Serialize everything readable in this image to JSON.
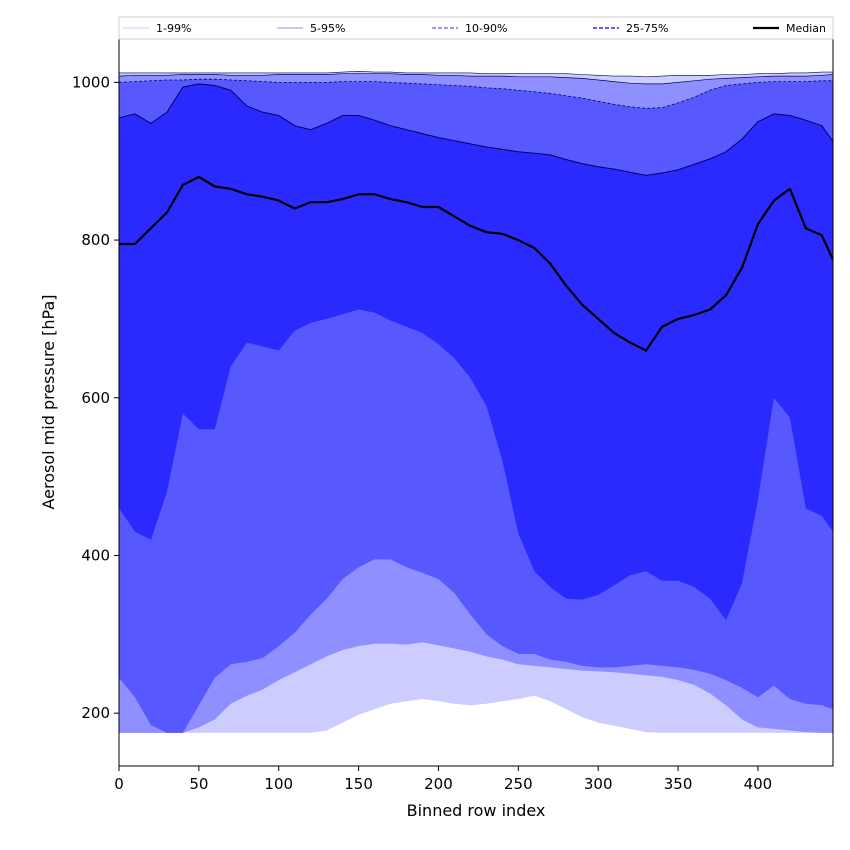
{
  "chart_data": {
    "type": "area",
    "title": "",
    "xlabel": "Binned row index",
    "ylabel": "Aerosol mid pressure [hPa]",
    "xlim": [
      0,
      447
    ],
    "ylim": [
      133,
      1055
    ],
    "x_ticks": [
      0,
      50,
      100,
      150,
      200,
      250,
      300,
      350,
      400
    ],
    "y_ticks": [
      200,
      400,
      600,
      800,
      1000
    ],
    "grid": false,
    "legend_position": "top (above plot, single row)",
    "colors": {
      "band_1_99": "#ccccff",
      "band_5_95": "#8f8fff",
      "band_10_90": "#5858ff",
      "band_25_75": "#2a2aff",
      "median": "#000000",
      "edge": "#000066"
    },
    "legend": [
      {
        "label": "1-99%",
        "style": "thin"
      },
      {
        "label": "5-95%",
        "style": "thin"
      },
      {
        "label": "10-90%",
        "style": "dashed"
      },
      {
        "label": "25-75%",
        "style": "dashed"
      },
      {
        "label": "Median",
        "style": "solid"
      }
    ],
    "x": [
      0,
      10,
      20,
      30,
      40,
      50,
      60,
      70,
      80,
      90,
      100,
      110,
      120,
      130,
      140,
      150,
      160,
      170,
      180,
      190,
      200,
      210,
      220,
      230,
      240,
      250,
      260,
      270,
      280,
      290,
      300,
      310,
      320,
      330,
      340,
      350,
      360,
      370,
      380,
      390,
      400,
      410,
      420,
      430,
      440,
      447
    ],
    "series": [
      {
        "name": "1-99% upper",
        "values": [
          1012,
          1012,
          1012,
          1012,
          1012,
          1012,
          1012,
          1012,
          1012,
          1012,
          1012,
          1012,
          1012,
          1012,
          1013,
          1014,
          1013,
          1013,
          1012,
          1012,
          1012,
          1012,
          1012,
          1011,
          1011,
          1011,
          1011,
          1011,
          1011,
          1010,
          1009,
          1008,
          1008,
          1007,
          1008,
          1009,
          1009,
          1009,
          1010,
          1010,
          1011,
          1011,
          1012,
          1012,
          1013,
          1013
        ]
      },
      {
        "name": "5-95% upper",
        "values": [
          1008,
          1009,
          1009,
          1009,
          1010,
          1010,
          1010,
          1009,
          1009,
          1009,
          1010,
          1010,
          1010,
          1010,
          1011,
          1011,
          1011,
          1011,
          1010,
          1010,
          1009,
          1009,
          1008,
          1008,
          1008,
          1007,
          1007,
          1007,
          1006,
          1005,
          1003,
          1001,
          999,
          998,
          998,
          1000,
          1002,
          1004,
          1005,
          1006,
          1007,
          1008,
          1008,
          1008,
          1009,
          1010
        ]
      },
      {
        "name": "10-90% upper",
        "values": [
          1000,
          1001,
          1002,
          1003,
          1003,
          1004,
          1004,
          1003,
          1002,
          1001,
          1000,
          1000,
          1000,
          1000,
          1001,
          1001,
          1001,
          1000,
          999,
          998,
          997,
          996,
          995,
          993,
          992,
          990,
          988,
          986,
          983,
          980,
          976,
          972,
          969,
          967,
          968,
          974,
          981,
          990,
          996,
          998,
          1000,
          1001,
          1001,
          1001,
          1002,
          1002
        ]
      },
      {
        "name": "25-75% upper",
        "values": [
          955,
          960,
          948,
          962,
          994,
          998,
          996,
          990,
          970,
          962,
          958,
          945,
          940,
          948,
          958,
          958,
          952,
          945,
          940,
          935,
          930,
          926,
          922,
          918,
          915,
          912,
          910,
          908,
          902,
          897,
          893,
          890,
          886,
          882,
          885,
          889,
          896,
          903,
          912,
          928,
          950,
          960,
          958,
          952,
          945,
          925
        ]
      },
      {
        "name": "Median",
        "values": [
          795,
          795,
          815,
          835,
          870,
          880,
          868,
          865,
          858,
          855,
          850,
          840,
          848,
          848,
          852,
          858,
          858,
          852,
          848,
          842,
          842,
          830,
          818,
          810,
          808,
          800,
          790,
          770,
          742,
          718,
          700,
          682,
          670,
          660,
          690,
          700,
          705,
          712,
          730,
          765,
          820,
          850,
          865,
          815,
          806,
          775
        ]
      },
      {
        "name": "25-75% lower",
        "values": [
          460,
          430,
          420,
          480,
          580,
          560,
          560,
          640,
          670,
          665,
          660,
          685,
          695,
          700,
          706,
          712,
          708,
          698,
          690,
          682,
          668,
          650,
          625,
          590,
          520,
          428,
          380,
          360,
          345,
          344,
          350,
          362,
          375,
          380,
          368,
          368,
          360,
          345,
          318,
          365,
          470,
          600,
          575,
          460,
          450,
          430
        ]
      },
      {
        "name": "10-90% lower",
        "values": [
          245,
          220,
          185,
          175,
          175,
          210,
          245,
          262,
          265,
          270,
          285,
          302,
          325,
          345,
          370,
          385,
          395,
          395,
          385,
          378,
          370,
          352,
          325,
          300,
          285,
          275,
          275,
          268,
          265,
          260,
          258,
          258,
          260,
          262,
          260,
          258,
          255,
          250,
          242,
          232,
          220,
          235,
          218,
          212,
          210,
          205
        ]
      },
      {
        "name": "5-95% lower",
        "values": [
          175,
          175,
          175,
          175,
          175,
          182,
          192,
          212,
          222,
          230,
          242,
          252,
          262,
          272,
          280,
          285,
          288,
          288,
          287,
          290,
          286,
          282,
          278,
          272,
          268,
          262,
          260,
          258,
          256,
          254,
          253,
          252,
          250,
          248,
          246,
          242,
          236,
          225,
          210,
          192,
          182,
          180,
          178,
          176,
          175,
          175
        ]
      },
      {
        "name": "1-99% lower",
        "values": [
          175,
          175,
          175,
          175,
          175,
          175,
          175,
          175,
          175,
          175,
          175,
          175,
          175,
          178,
          188,
          198,
          205,
          212,
          215,
          218,
          215,
          212,
          210,
          212,
          215,
          218,
          222,
          215,
          205,
          195,
          188,
          184,
          180,
          176,
          175,
          175,
          175,
          175,
          175,
          175,
          175,
          175,
          175,
          175,
          175,
          175
        ]
      }
    ]
  }
}
